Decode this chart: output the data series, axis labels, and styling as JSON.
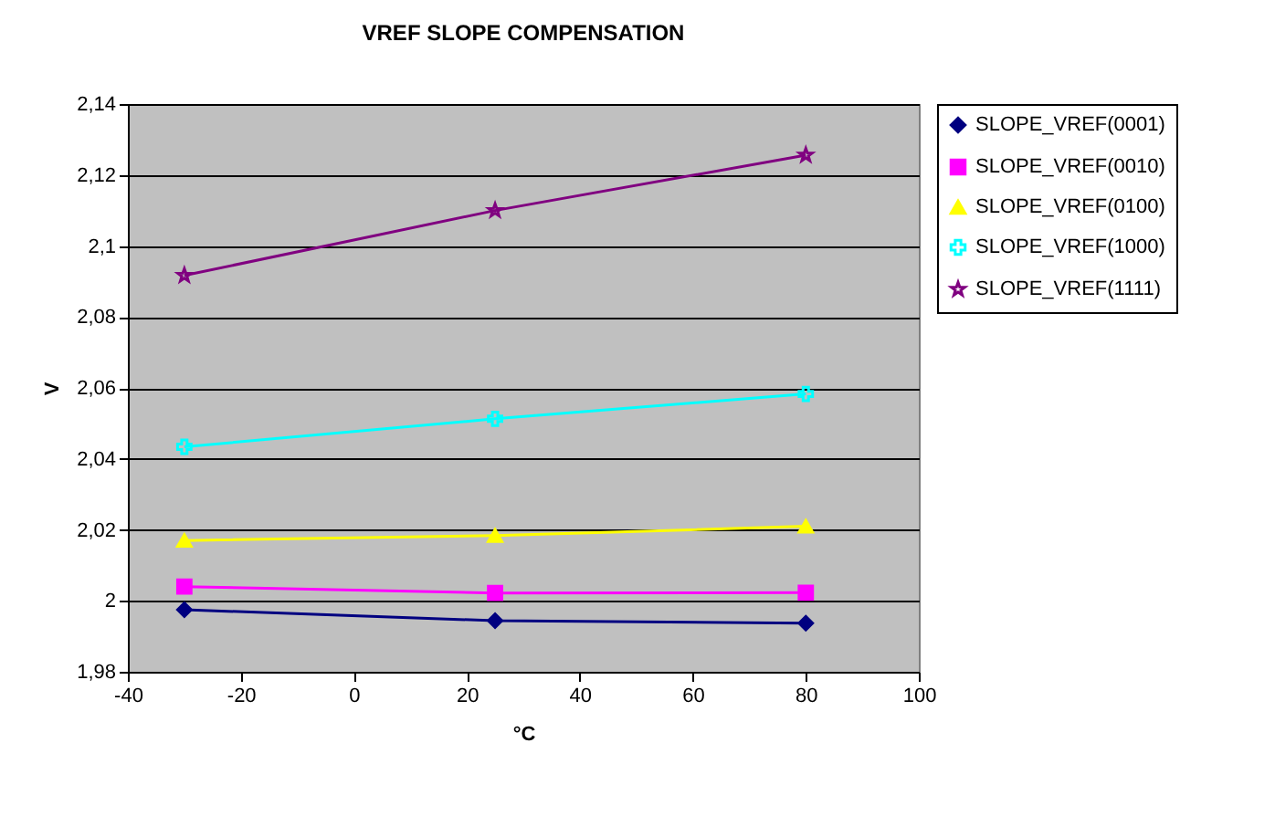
{
  "chart_data": {
    "type": "line",
    "title": "VREF SLOPE COMPENSATION",
    "xlabel": "°C",
    "ylabel": "V",
    "x": [
      -30,
      25,
      80
    ],
    "series": [
      {
        "name": "SLOPE_VREF(0001)",
        "color": "#000080",
        "marker": "diamond",
        "values": [
          1.9975,
          1.9944,
          1.9937
        ]
      },
      {
        "name": "SLOPE_VREF(0010)",
        "color": "#ff00ff",
        "marker": "square",
        "values": [
          2.004,
          2.0022,
          2.0023
        ]
      },
      {
        "name": "SLOPE_VREF(0100)",
        "color": "#ffff00",
        "marker": "triangle",
        "values": [
          2.017,
          2.0184,
          2.021
        ]
      },
      {
        "name": "SLOPE_VREF(1000)",
        "color": "#00ffff",
        "marker": "cross",
        "values": [
          2.0434,
          2.0513,
          2.0583
        ]
      },
      {
        "name": "SLOPE_VREF(1111)",
        "color": "#800080",
        "marker": "star",
        "values": [
          2.0917,
          2.11,
          2.1256
        ]
      }
    ],
    "xlim": [
      -40,
      100
    ],
    "xticks": [
      -40,
      -20,
      0,
      20,
      40,
      60,
      80,
      100
    ],
    "ylim": [
      1.98,
      2.14
    ],
    "yticks": [
      {
        "value": 1.98,
        "label": "1,98"
      },
      2,
      {
        "value": 2.02,
        "label": "2,02"
      },
      {
        "value": 2.04,
        "label": "2,04"
      },
      {
        "value": 2.06,
        "label": "2,06"
      },
      {
        "value": 2.08,
        "label": "2,08"
      },
      {
        "value": 2.1,
        "label": "2,1"
      },
      {
        "value": 2.12,
        "label": "2,12"
      },
      {
        "value": 2.14,
        "label": "2,14"
      }
    ],
    "grid": "y",
    "legend": "right",
    "line_style": "solid"
  }
}
